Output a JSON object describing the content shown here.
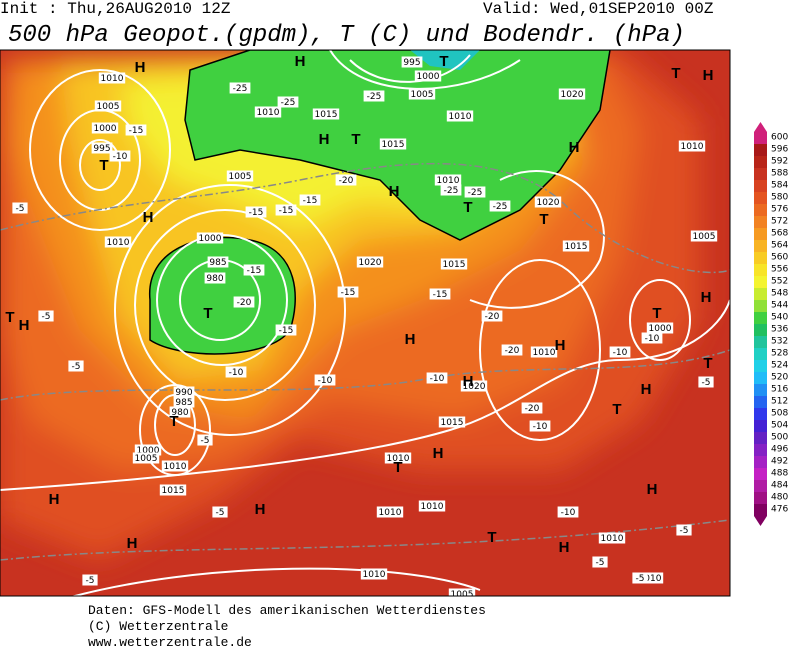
{
  "header": {
    "init": "Init : Thu,26AUG2010 12Z",
    "valid": "Valid: Wed,01SEP2010 00Z",
    "title": "500 hPa Geopot.(gpdm), T (C) und Bodendr. (hPa)"
  },
  "map": {
    "pressure_labels": [
      "1010",
      "1005",
      "1000",
      "995",
      "995",
      "1000",
      "1005",
      "1010",
      "1020",
      "1010",
      "1015",
      "1015",
      "1005",
      "1010",
      "1020",
      "1010",
      "1000",
      "985",
      "980",
      "1020",
      "1015",
      "1015",
      "1005",
      "1010",
      "1000",
      "1010",
      "1020",
      "1015",
      "990",
      "985",
      "980",
      "1000",
      "1005",
      "1010",
      "1015",
      "1010",
      "1010",
      "1010",
      "1010",
      "1010",
      "1010",
      "1005"
    ],
    "temperature_labels": [
      "-25",
      "-25",
      "-25",
      "-15",
      "-10",
      "-20",
      "-15",
      "-15",
      "-25",
      "-25",
      "-25",
      "-15",
      "-15",
      "-20",
      "-15",
      "-10",
      "-15",
      "-15",
      "-20",
      "-20",
      "-10",
      "-10",
      "-5",
      "-5",
      "-5",
      "-10",
      "-10",
      "-5",
      "-5",
      "-5",
      "-20",
      "-10",
      "-10",
      "-5",
      "-5",
      "-5",
      "-5"
    ],
    "pressure_centers": [
      "H",
      "H",
      "T",
      "T",
      "H",
      "T",
      "H",
      "H",
      "H",
      "H",
      "T",
      "T",
      "T",
      "T",
      "T",
      "H",
      "H",
      "H",
      "H",
      "T",
      "H",
      "T",
      "H",
      "T",
      "H",
      "H",
      "H",
      "T",
      "H",
      "T",
      "H",
      "H",
      "T"
    ]
  },
  "legend": {
    "labels": [
      600,
      596,
      592,
      588,
      584,
      580,
      576,
      572,
      568,
      564,
      560,
      556,
      552,
      548,
      544,
      540,
      536,
      532,
      528,
      524,
      520,
      516,
      512,
      508,
      504,
      500,
      496,
      492,
      488,
      484,
      480,
      476
    ],
    "colors": [
      "#d0207a",
      "#a81818",
      "#b82418",
      "#c83220",
      "#d84220",
      "#e45420",
      "#ec6a20",
      "#f28222",
      "#f69a22",
      "#f8b424",
      "#f8cc24",
      "#f8e428",
      "#f4f430",
      "#c8ec30",
      "#90e038",
      "#40d040",
      "#20c060",
      "#20c49c",
      "#20d0c4",
      "#20d0e8",
      "#20bcf8",
      "#2090f4",
      "#2464f0",
      "#3038ec",
      "#4420d4",
      "#6420c4",
      "#8420c4",
      "#a420c4",
      "#c420c4",
      "#b01ca4",
      "#a01084",
      "#800060"
    ]
  },
  "footer": [
    "Daten: GFS-Modell des amerikanischen Wetterdienstes",
    "(C) Wetterzentrale",
    "www.wetterzentrale.de"
  ]
}
